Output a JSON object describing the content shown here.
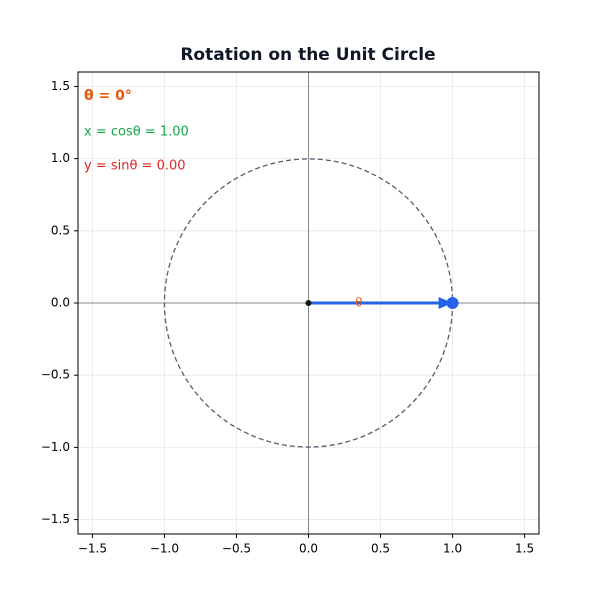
{
  "chart_data": {
    "type": "unit-circle",
    "title": "Rotation on the Unit Circle",
    "xlim": [
      -1.6,
      1.6
    ],
    "ylim": [
      -1.6,
      1.6
    ],
    "xticks": [
      {
        "value": -1.5,
        "label": "−1.5"
      },
      {
        "value": -1,
        "label": "−1.0"
      },
      {
        "value": -0.5,
        "label": "−0.5"
      },
      {
        "value": 0,
        "label": "0.0"
      },
      {
        "value": 0.5,
        "label": "0.5"
      },
      {
        "value": 1,
        "label": "1.0"
      },
      {
        "value": 1.5,
        "label": "1.5"
      }
    ],
    "yticks": [
      {
        "value": -1.5,
        "label": "−1.5"
      },
      {
        "value": -1,
        "label": "−1.0"
      },
      {
        "value": -0.5,
        "label": "−0.5"
      },
      {
        "value": 0,
        "label": "0.0"
      },
      {
        "value": 0.5,
        "label": "0.5"
      },
      {
        "value": 1,
        "label": "1.0"
      },
      {
        "value": 1.5,
        "label": "1.5"
      }
    ],
    "grid": true,
    "radius": 1,
    "origin": {
      "x": 0,
      "y": 0
    },
    "point": {
      "x": 1,
      "y": 0
    },
    "color": "#2563eb",
    "angle_label": "θ",
    "angle_label_color": "#e8590c",
    "annotations": [
      {
        "text": "θ = 0°",
        "color": "#e8590c"
      },
      {
        "text": "x = cosθ = 1.00",
        "color": "#16a34a"
      },
      {
        "text": "y = sinθ = 0.00",
        "color": "#dc2626"
      }
    ]
  }
}
